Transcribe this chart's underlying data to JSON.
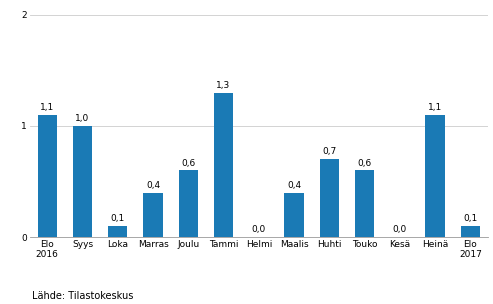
{
  "categories": [
    "Elo\n2016",
    "Syys",
    "Loka",
    "Marras",
    "Joulu",
    "Tammi",
    "Helmi",
    "Maalis",
    "Huhti",
    "Touko",
    "Kesä",
    "Heinä",
    "Elo\n2017"
  ],
  "values": [
    1.1,
    1.0,
    0.1,
    0.4,
    0.6,
    1.3,
    0.0,
    0.4,
    0.7,
    0.6,
    0.0,
    1.1,
    0.1
  ],
  "bar_color": "#1a7ab5",
  "ylim": [
    0,
    2.05
  ],
  "yticks": [
    0,
    1,
    2
  ],
  "source_text": "Lähde: Tilastokeskus",
  "value_labels": [
    "1,1",
    "1,0",
    "0,1",
    "0,4",
    "0,6",
    "1,3",
    "0,0",
    "0,4",
    "0,7",
    "0,6",
    "0,0",
    "1,1",
    "0,1"
  ],
  "label_fontsize": 6.5,
  "tick_fontsize": 6.5,
  "source_fontsize": 7,
  "bar_width": 0.55
}
